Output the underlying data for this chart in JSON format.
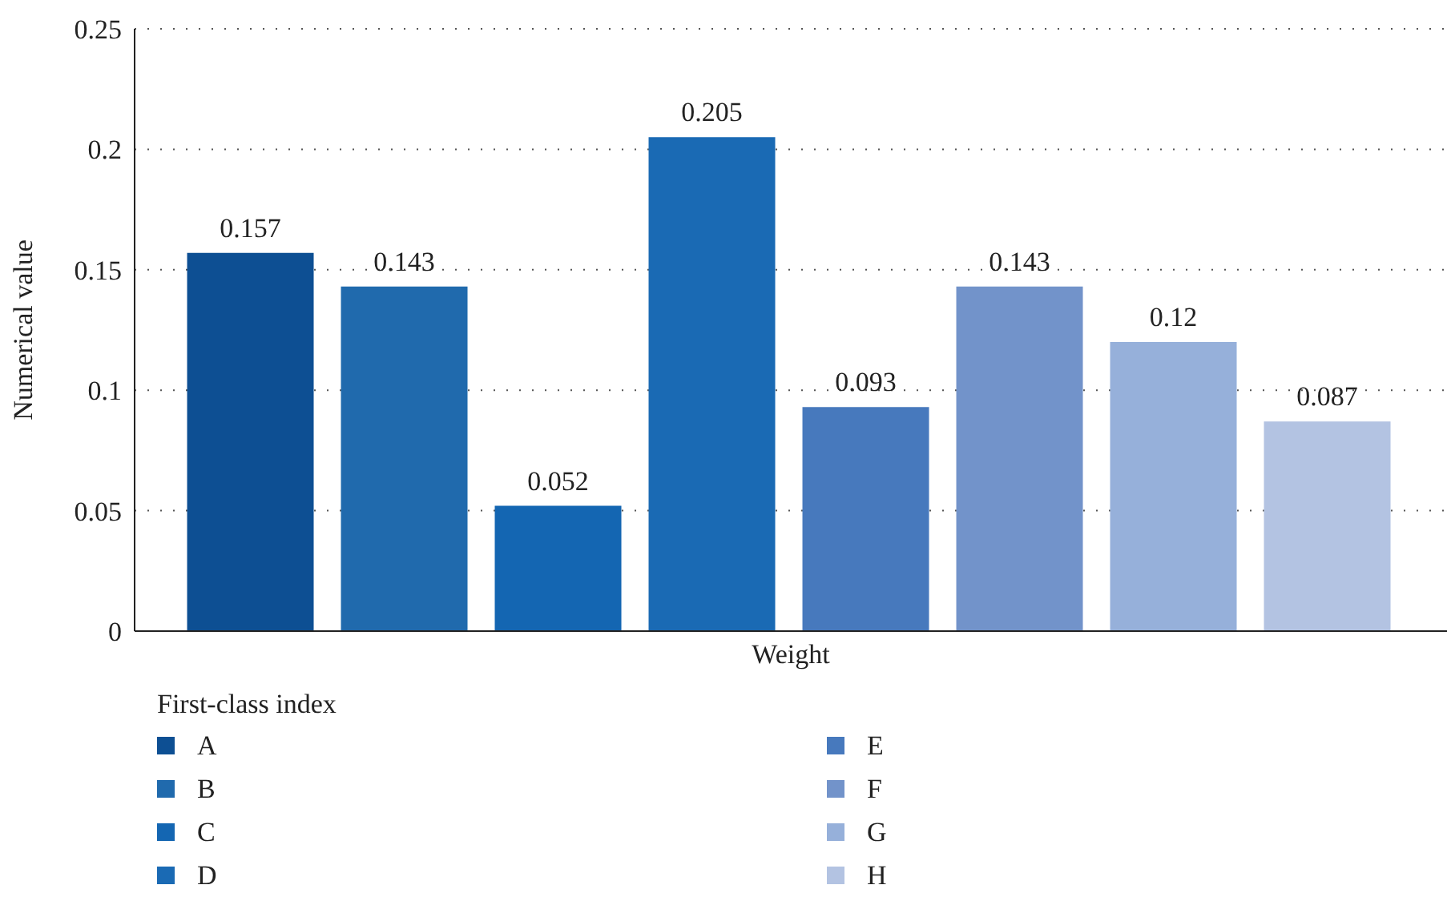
{
  "chart_data": {
    "type": "bar",
    "categories": [
      "Weight"
    ],
    "ylabel": "Numerical value",
    "legend_title": "First-class index",
    "series": [
      {
        "name": "A",
        "color": "#0d4f93",
        "values": [
          0.157
        ]
      },
      {
        "name": "B",
        "color": "#206aad",
        "values": [
          0.143
        ]
      },
      {
        "name": "C",
        "color": "#1466b2",
        "values": [
          0.052
        ]
      },
      {
        "name": "D",
        "color": "#1a6ab4",
        "values": [
          0.205
        ]
      },
      {
        "name": "E",
        "color": "#4779bd",
        "values": [
          0.093
        ]
      },
      {
        "name": "F",
        "color": "#7293ca",
        "values": [
          0.143
        ]
      },
      {
        "name": "G",
        "color": "#96b0da",
        "values": [
          0.12
        ]
      },
      {
        "name": "H",
        "color": "#b3c3e2",
        "values": [
          0.087
        ]
      }
    ],
    "ylim": [
      0,
      0.25
    ],
    "yticks": [
      0,
      0.05,
      0.1,
      0.15,
      0.2,
      0.25
    ],
    "grid": "y",
    "legend": "bottom",
    "data_labels": true
  }
}
